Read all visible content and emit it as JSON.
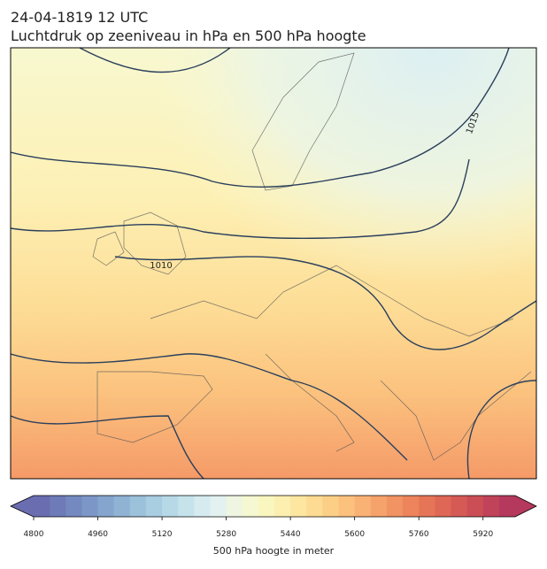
{
  "title": "24-04-1819 12 UTC",
  "subtitle": "Luchtdruk op zeeniveau in hPa en 500 hPa hoogte",
  "map": {
    "contour_labels": [
      "1010",
      "1015"
    ]
  },
  "colorbar": {
    "label": "500 hPa hoogte in meter",
    "lim": [
      4800,
      6000
    ],
    "ticks": [
      4800,
      4960,
      5120,
      5280,
      5440,
      5600,
      5760,
      5920
    ],
    "colors": [
      "#6a6db0",
      "#6e7bb8",
      "#7489c0",
      "#7c97c7",
      "#85a5ce",
      "#90b3d4",
      "#9cc1da",
      "#a9cde1",
      "#b7d9e7",
      "#c6e3ec",
      "#d5ebf0",
      "#e3f2f0",
      "#eef6e2",
      "#f5f8d0",
      "#f9f6bf",
      "#fcefaf",
      "#fde6a0",
      "#fddb93",
      "#fccf87",
      "#fbc17d",
      "#f9b274",
      "#f6a26b",
      "#f29363",
      "#ed845c",
      "#e67557",
      "#de6755",
      "#d55a55",
      "#cb4e57",
      "#c0435a",
      "#b4395c"
    ]
  }
}
